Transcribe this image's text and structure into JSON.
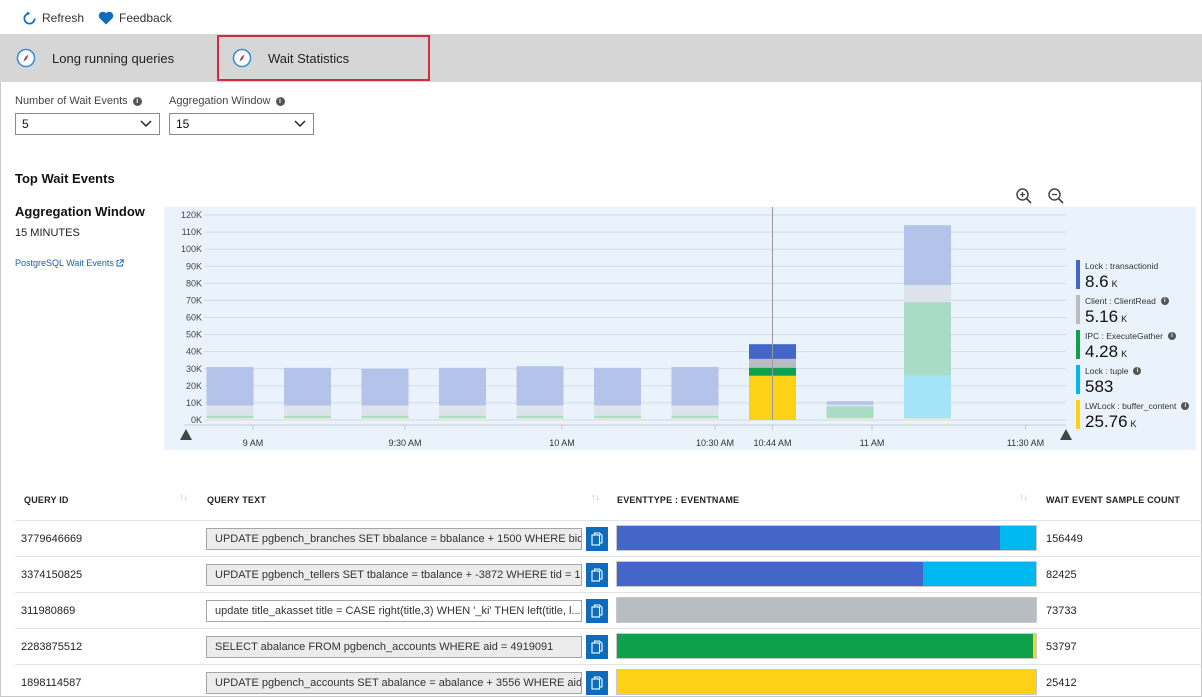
{
  "toolbar": {
    "refresh_label": "Refresh",
    "feedback_label": "Feedback"
  },
  "tabs": [
    {
      "label": "Long running queries",
      "active": false
    },
    {
      "label": "Wait Statistics",
      "active": true
    }
  ],
  "filters": {
    "wait_events": {
      "label": "Number of Wait Events",
      "value": "5"
    },
    "aggregation": {
      "label": "Aggregation Window",
      "value": "15"
    }
  },
  "section_title": "Top Wait Events",
  "aggregation_info": {
    "title": "Aggregation Window",
    "value": "15 MINUTES",
    "link": "PostgreSQL Wait Events"
  },
  "colors": {
    "lock_transactionid": "#4466c8",
    "client_clientread": "#b8bdc4",
    "ipc_executegather": "#0ea04a",
    "lock_tuple": "#00b8f0",
    "lwlock_buffer_content": "#fcd116",
    "accent": "#0f6cbd",
    "active_tab_border": "#d02d3f"
  },
  "chart_data": {
    "type": "bar",
    "stacked": true,
    "categories": [
      "9 AM",
      "9:15",
      "9:30 AM",
      "9:45",
      "10 AM",
      "10:15",
      "10:30 AM",
      "10:44 AM",
      "11 AM",
      "11:15"
    ],
    "x_tick_labels": [
      "9 AM",
      "9:30 AM",
      "10 AM",
      "10:30 AM",
      "10:44 AM",
      "11 AM",
      "11:30 AM"
    ],
    "y_tick_labels": [
      "0K",
      "10K",
      "20K",
      "30K",
      "40K",
      "50K",
      "60K",
      "70K",
      "80K",
      "90K",
      "100K",
      "110K",
      "120K"
    ],
    "ylim": [
      0,
      120000
    ],
    "highlighted_category": "10:44 AM",
    "series": [
      {
        "name": "LWLock : buffer_content",
        "values": [
          1000,
          1000,
          1000,
          1000,
          1000,
          1000,
          1000,
          25760,
          1000,
          1000
        ]
      },
      {
        "name": "Lock : tuple",
        "values": [
          500,
          500,
          500,
          500,
          500,
          500,
          500,
          583,
          500,
          25000
        ]
      },
      {
        "name": "IPC : ExecuteGather",
        "values": [
          1000,
          1000,
          1000,
          1000,
          1000,
          1000,
          1000,
          4280,
          6500,
          43000
        ]
      },
      {
        "name": "Client : ClientRead",
        "values": [
          6000,
          6000,
          6000,
          6000,
          6000,
          6000,
          6000,
          5160,
          1000,
          10000
        ]
      },
      {
        "name": "Lock : transactionid",
        "values": [
          22500,
          22000,
          21500,
          22000,
          23000,
          22000,
          22500,
          8600,
          2000,
          35000
        ]
      }
    ],
    "legend": [
      {
        "name": "Lock : transactionid",
        "value": "8.6",
        "unit": "K"
      },
      {
        "name": "Client : ClientRead",
        "value": "5.16",
        "unit": "K"
      },
      {
        "name": "IPC : ExecuteGather",
        "value": "4.28",
        "unit": "K"
      },
      {
        "name": "Lock : tuple",
        "value": "583",
        "unit": ""
      },
      {
        "name": "LWLock : buffer_content",
        "value": "25.76",
        "unit": "K"
      }
    ],
    "legend_placement": "right",
    "grid": true
  },
  "table": {
    "headers": [
      "QUERY ID",
      "QUERY TEXT",
      "EVENTTYPE : EVENTNAME",
      "WAIT EVENT SAMPLE COUNT"
    ],
    "rows": [
      {
        "id": "3779646669",
        "text": "UPDATE pgbench_branches SET bbalance = bbalance + 1500 WHERE bid...",
        "count": "156449",
        "segments": [
          {
            "event": "Lock : transactionid",
            "fraction": 0.913
          },
          {
            "event": "Lock : tuple",
            "fraction": 0.087
          }
        ]
      },
      {
        "id": "3374150825",
        "text": "UPDATE pgbench_tellers SET tbalance = tbalance + -3872 WHERE tid = 12",
        "count": "82425",
        "segments": [
          {
            "event": "Lock : transactionid",
            "fraction": 0.73
          },
          {
            "event": "Lock : tuple",
            "fraction": 0.27
          }
        ]
      },
      {
        "id": "311980869",
        "text": "update title_akasset title = CASE right(title,3) WHEN '_ki' THEN left(title, l...",
        "count": "73733",
        "segments": [
          {
            "event": "Client : ClientRead",
            "fraction": 1.0
          }
        ]
      },
      {
        "id": "2283875512",
        "text": "SELECT abalance FROM pgbench_accounts WHERE aid = 4919091",
        "count": "53797",
        "segments": [
          {
            "event": "IPC : ExecuteGather",
            "fraction": 0.994
          },
          {
            "event": "LWLock : buffer_content",
            "fraction": 0.006
          }
        ]
      },
      {
        "id": "1898114587",
        "text": "UPDATE pgbench_accounts SET abalance = abalance + 3556 WHERE aid ...",
        "count": "25412",
        "segments": [
          {
            "event": "LWLock : buffer_content",
            "fraction": 1.0
          }
        ]
      }
    ]
  }
}
